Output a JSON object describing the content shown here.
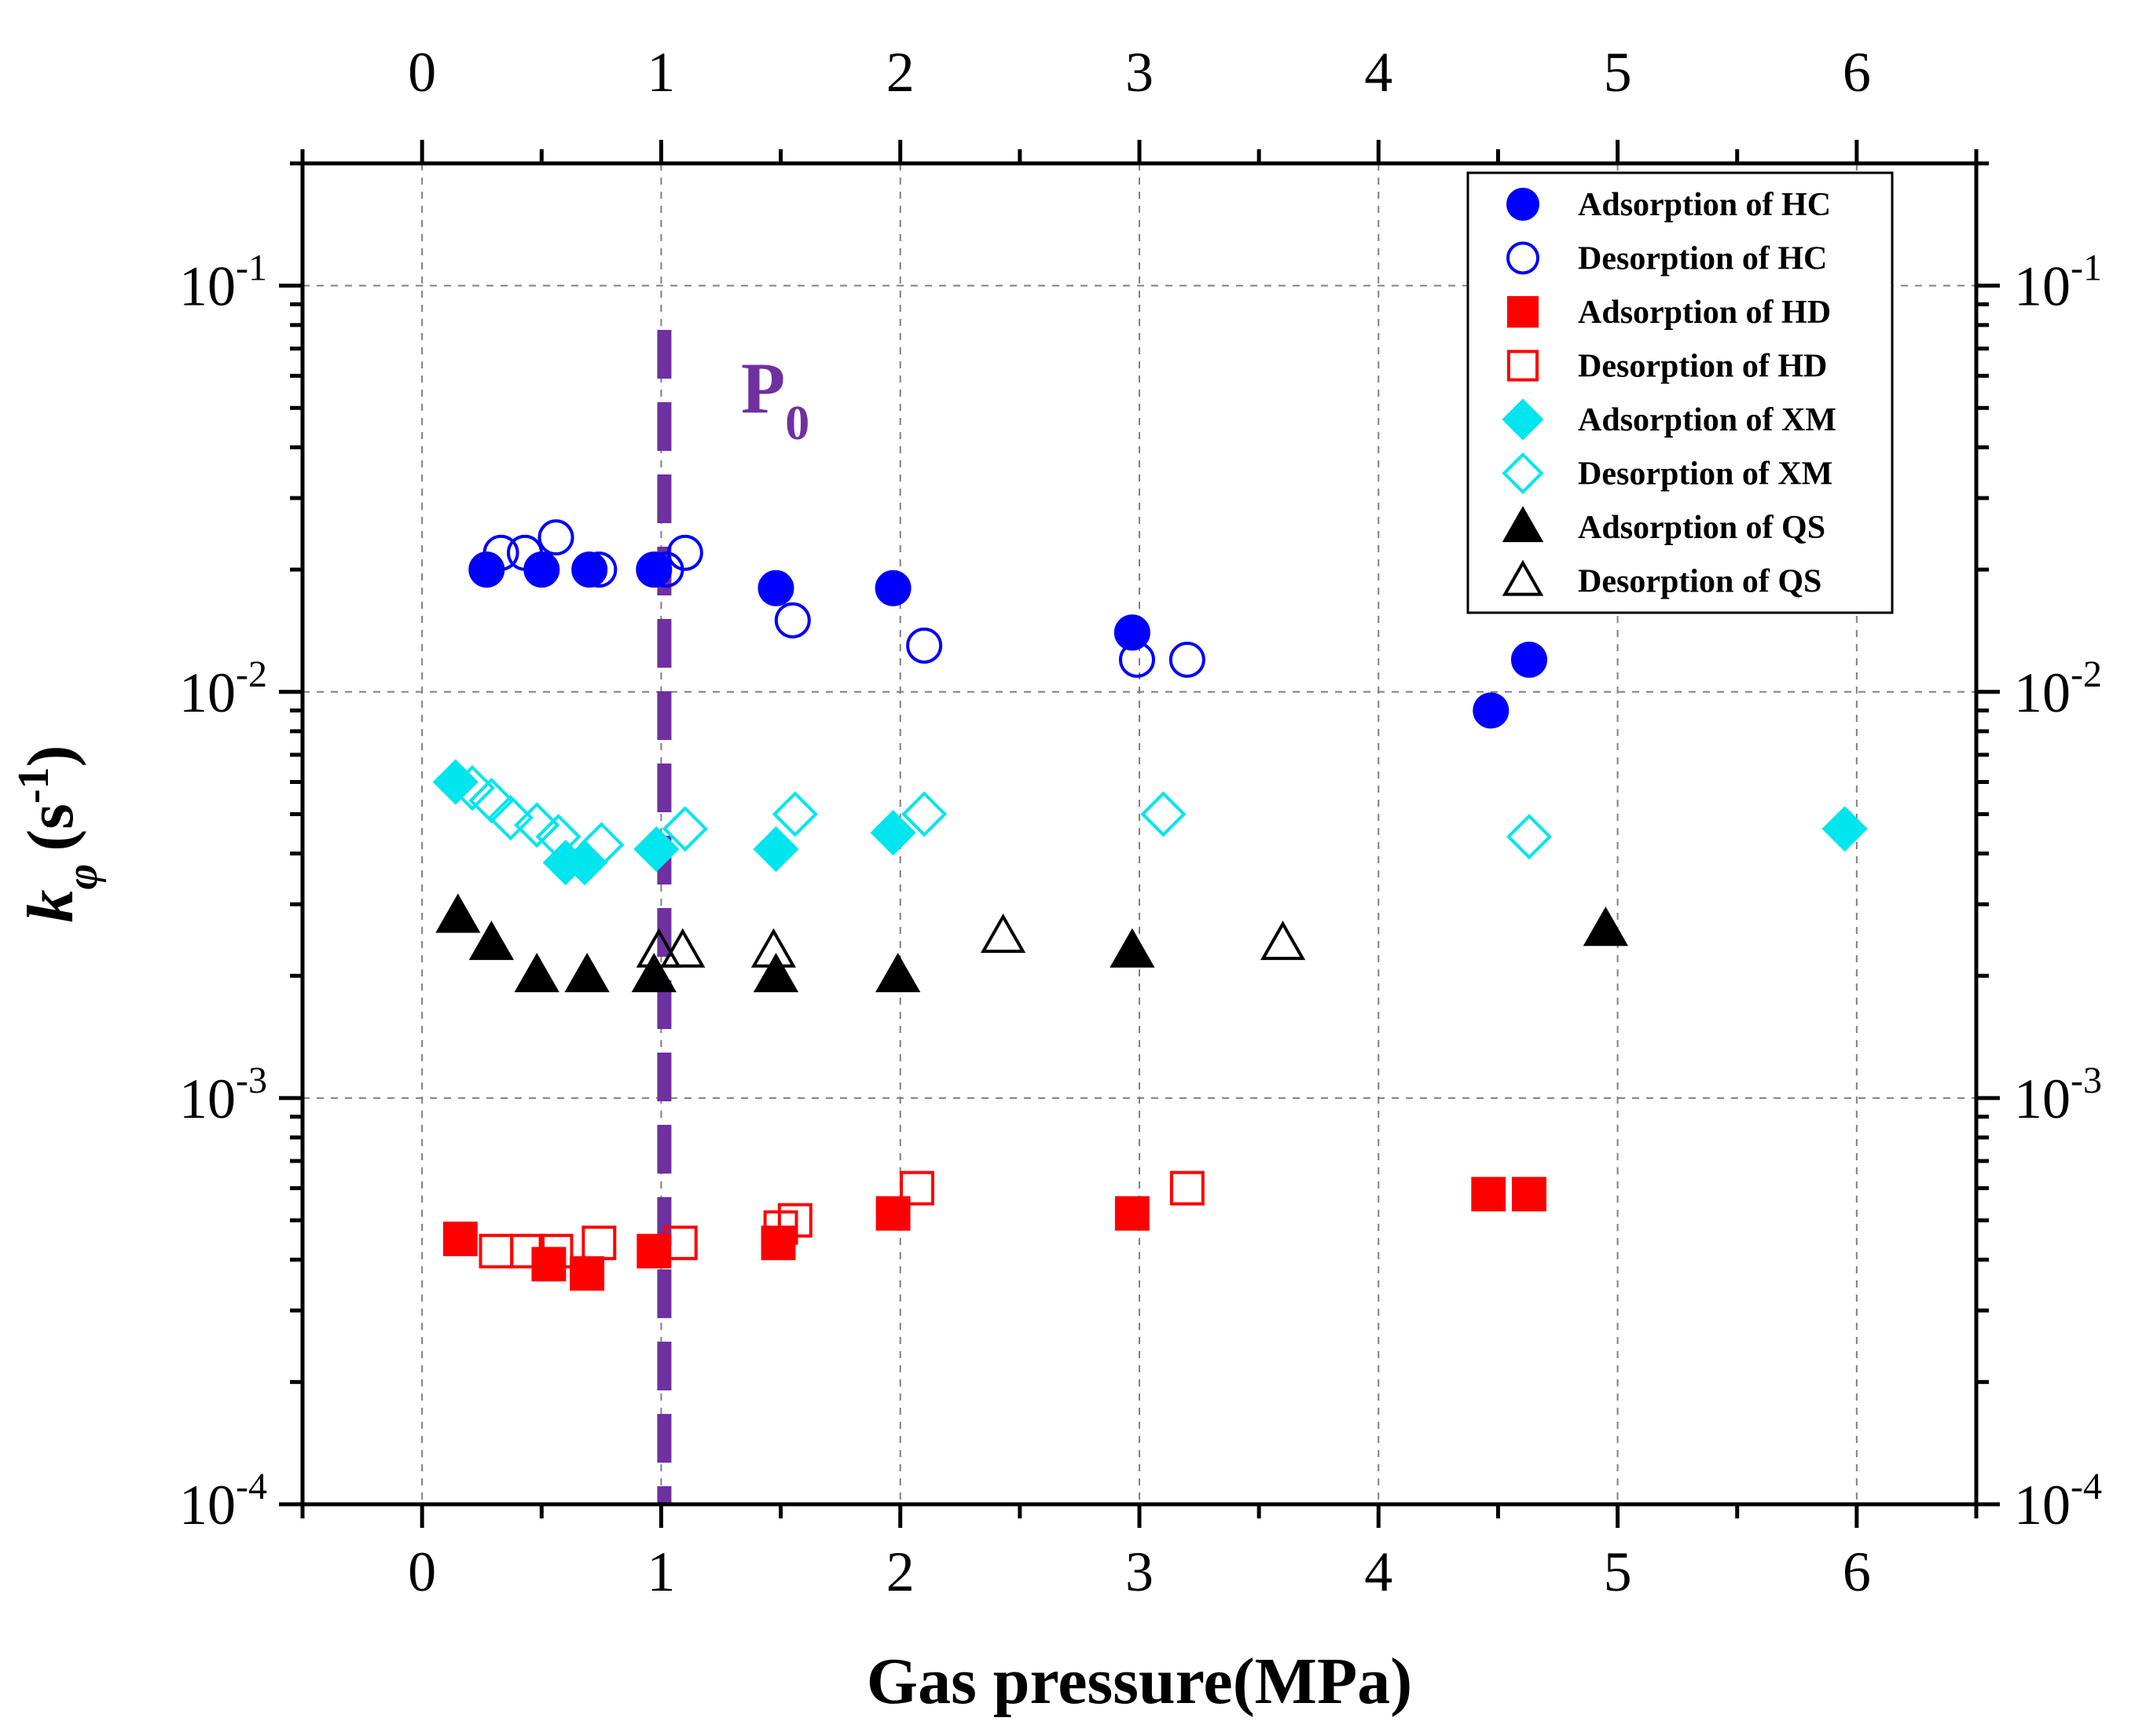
{
  "chart_data": {
    "type": "scatter",
    "title": "",
    "xlabel": "Gas pressure(MPa)",
    "ylabel_main": "k",
    "ylabel_sub": "φ",
    "ylabel_units": "(s",
    "ylabel_exp": "-1",
    "ylabel_close": ")",
    "xlim": [
      -0.5,
      6.5
    ],
    "ylim": [
      0.0001,
      0.2
    ],
    "yscale": "log",
    "grid": true,
    "x_ticks": [
      0,
      1,
      2,
      3,
      4,
      5,
      6
    ],
    "x_tick_labels": [
      "0",
      "1",
      "2",
      "3",
      "4",
      "5",
      "6"
    ],
    "y_ticks": [
      0.0001,
      0.001,
      0.01,
      0.1
    ],
    "y_tick_base": "10",
    "y_tick_exps": [
      "-4",
      "-3",
      "-2",
      "-1"
    ],
    "legend_position": "top-right",
    "annotation": {
      "text": "P",
      "sub": "0",
      "x": 1.0,
      "color": "#7030a0"
    },
    "series": [
      {
        "name": "Adsorption of HC",
        "marker": "circle",
        "filled": true,
        "color": "#0000ff",
        "points": [
          [
            0.27,
            0.02
          ],
          [
            0.5,
            0.02
          ],
          [
            0.7,
            0.02
          ],
          [
            0.97,
            0.02
          ],
          [
            1.48,
            0.018
          ],
          [
            1.97,
            0.018
          ],
          [
            2.97,
            0.014
          ],
          [
            4.47,
            0.009
          ],
          [
            4.63,
            0.012
          ]
        ]
      },
      {
        "name": "Desorption of HC",
        "marker": "circle",
        "filled": false,
        "color": "#0000ff",
        "points": [
          [
            0.33,
            0.022
          ],
          [
            0.43,
            0.022
          ],
          [
            0.56,
            0.024
          ],
          [
            0.74,
            0.02
          ],
          [
            1.02,
            0.02
          ],
          [
            1.1,
            0.022
          ],
          [
            1.55,
            0.015
          ],
          [
            2.1,
            0.013
          ],
          [
            2.99,
            0.012
          ],
          [
            3.2,
            0.012
          ]
        ]
      },
      {
        "name": "Adsorption of HD",
        "marker": "square",
        "filled": true,
        "color": "#ff0000",
        "points": [
          [
            0.16,
            0.00045
          ],
          [
            0.53,
            0.00039
          ],
          [
            0.69,
            0.00037
          ],
          [
            0.97,
            0.00042
          ],
          [
            1.49,
            0.00044
          ],
          [
            1.97,
            0.00052
          ],
          [
            2.97,
            0.00052
          ],
          [
            4.46,
            0.00058
          ],
          [
            4.63,
            0.00058
          ]
        ]
      },
      {
        "name": "Desorption of HD",
        "marker": "square",
        "filled": false,
        "color": "#ff0000",
        "points": [
          [
            0.31,
            0.00042
          ],
          [
            0.44,
            0.00042
          ],
          [
            0.56,
            0.00042
          ],
          [
            0.74,
            0.00044
          ],
          [
            1.08,
            0.00044
          ],
          [
            1.5,
            0.00048
          ],
          [
            1.56,
            0.0005
          ],
          [
            2.07,
            0.0006
          ],
          [
            3.2,
            0.0006
          ]
        ]
      },
      {
        "name": "Adsorption of XM",
        "marker": "diamond",
        "filled": true,
        "color": "#00e5ee",
        "points": [
          [
            0.14,
            0.006
          ],
          [
            0.6,
            0.0038
          ],
          [
            0.68,
            0.0038
          ],
          [
            0.98,
            0.0041
          ],
          [
            1.48,
            0.0041
          ],
          [
            1.97,
            0.0045
          ],
          [
            5.95,
            0.0046
          ]
        ]
      },
      {
        "name": "Desorption of XM",
        "marker": "diamond",
        "filled": false,
        "color": "#00e5ee",
        "points": [
          [
            0.21,
            0.0058
          ],
          [
            0.29,
            0.0054
          ],
          [
            0.37,
            0.0049
          ],
          [
            0.48,
            0.0047
          ],
          [
            0.57,
            0.0044
          ],
          [
            0.75,
            0.0042
          ],
          [
            1.1,
            0.0046
          ],
          [
            1.56,
            0.005
          ],
          [
            2.1,
            0.005
          ],
          [
            3.1,
            0.005
          ],
          [
            4.63,
            0.0044
          ]
        ]
      },
      {
        "name": "Adsorption of QS",
        "marker": "triangle",
        "filled": true,
        "color": "#000000",
        "points": [
          [
            0.15,
            0.0028
          ],
          [
            0.29,
            0.0024
          ],
          [
            0.48,
            0.002
          ],
          [
            0.69,
            0.002
          ],
          [
            0.97,
            0.002
          ],
          [
            1.48,
            0.002
          ],
          [
            1.99,
            0.002
          ],
          [
            2.97,
            0.0023
          ],
          [
            4.95,
            0.0026
          ]
        ]
      },
      {
        "name": "Desorption of QS",
        "marker": "triangle",
        "filled": false,
        "color": "#000000",
        "points": [
          [
            0.99,
            0.0023
          ],
          [
            1.09,
            0.0023
          ],
          [
            1.47,
            0.0023
          ],
          [
            2.43,
            0.0025
          ],
          [
            3.6,
            0.0024
          ]
        ]
      }
    ]
  }
}
